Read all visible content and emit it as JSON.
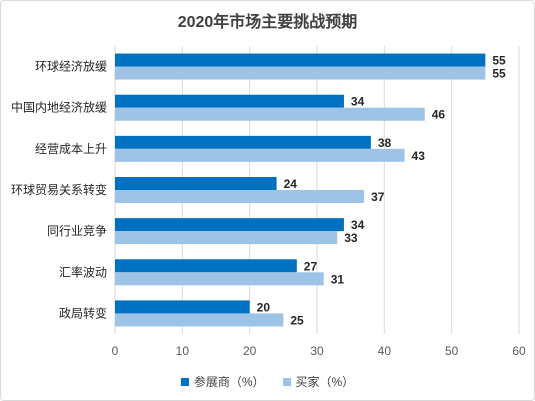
{
  "chart_data": {
    "type": "bar",
    "orientation": "horizontal",
    "title": "2020年市场主要挑战预期",
    "categories": [
      "环球经济放缓",
      "中国内地经济放缓",
      "经营成本上升",
      "环球贸易关系转变",
      "同行业竞争",
      "汇率波动",
      "政局转变"
    ],
    "series": [
      {
        "name": "参展商（%）",
        "color": "#0070c0",
        "values": [
          55,
          34,
          38,
          24,
          34,
          27,
          20
        ]
      },
      {
        "name": "买家（%）",
        "color": "#9dc3e6",
        "values": [
          55,
          46,
          43,
          37,
          33,
          31,
          25
        ]
      }
    ],
    "xlim": [
      0,
      60
    ],
    "xticks": [
      0,
      10,
      20,
      30,
      40,
      50,
      60
    ],
    "grid": true,
    "legend_position": "bottom"
  }
}
